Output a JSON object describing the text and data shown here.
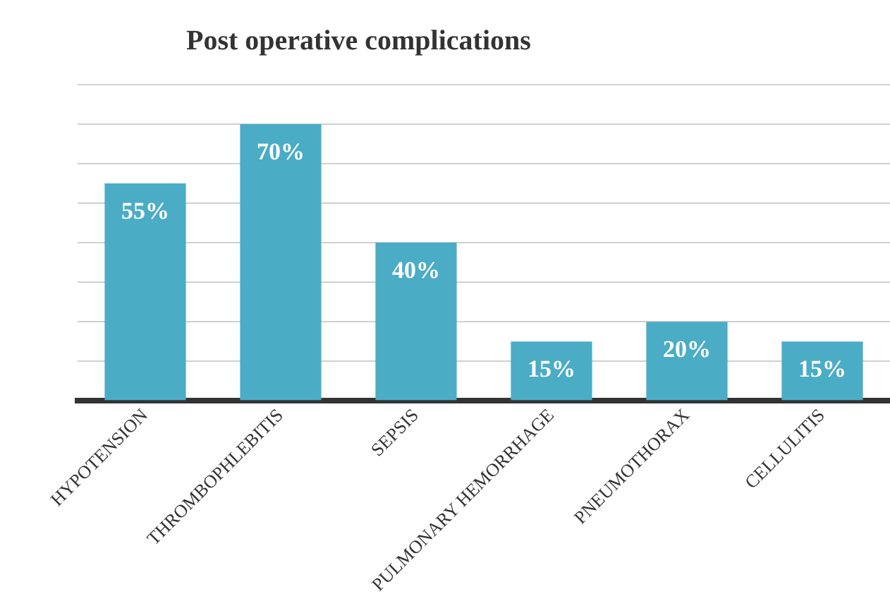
{
  "chart_data": {
    "type": "bar",
    "title": "Post operative complications",
    "categories": [
      "HYPOTENSION",
      "THROMBOPHLEBITIS",
      "SEPSIS",
      "PULMONARY HEMORRHAGE",
      "PNEUMOTHORAX",
      "CELLULITIS"
    ],
    "values": [
      55,
      70,
      40,
      15,
      20,
      15
    ],
    "value_labels": [
      "55%",
      "70%",
      "40%",
      "15%",
      "20%",
      "15%"
    ],
    "color": "#4bacc6",
    "ylim": [
      0,
      80
    ],
    "yticks": [
      {
        "value": 0,
        "label": null
      },
      {
        "value": 10,
        "label": null
      },
      {
        "value": 20,
        "label": null
      },
      {
        "value": 30,
        "label": null
      },
      {
        "value": 40,
        "label": null
      },
      {
        "value": 50,
        "label": null
      },
      {
        "value": 60,
        "label": null
      },
      {
        "value": 70,
        "label": null
      },
      {
        "value": 80,
        "label": null
      }
    ],
    "grid": "y",
    "tick_labels": "x"
  }
}
